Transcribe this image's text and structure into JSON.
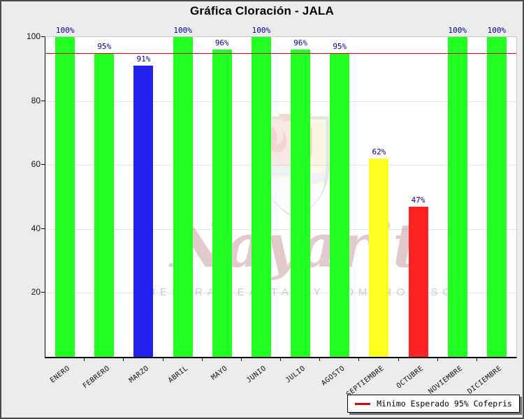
{
  "window": {
    "title": "Gráfica Cloración - JALA"
  },
  "chart_data": {
    "type": "bar",
    "title": "Gráfica Cloración - JALA",
    "categories": [
      "ENERO",
      "FEBRERO",
      "MARZO",
      "ABRIL",
      "MAYO",
      "JUNIO",
      "JULIO",
      "AGOSTO",
      "SEPTIEMBRE",
      "OCTUBRE",
      "NOVIEMBRE",
      "DICIEMBRE"
    ],
    "values": [
      100,
      95,
      91,
      100,
      96,
      100,
      96,
      95,
      62,
      47,
      100,
      100
    ],
    "value_labels": [
      "100%",
      "95%",
      "91%",
      "100%",
      "96%",
      "100%",
      "96%",
      "95%",
      "62%",
      "47%",
      "100%",
      "100%"
    ],
    "bar_colors": [
      "#22ff22",
      "#22ff22",
      "#2222ee",
      "#22ff22",
      "#22ff22",
      "#22ff22",
      "#22ff22",
      "#22ff22",
      "#ffff22",
      "#ff2222",
      "#22ff22",
      "#22ff22"
    ],
    "value_label_color": "#000099",
    "xlabel": "",
    "ylabel": "",
    "ylim": [
      0,
      100
    ],
    "yticks": [
      20,
      40,
      60,
      80,
      100
    ],
    "grid": true,
    "threshold": {
      "value": 95,
      "color": "#dd0000",
      "label": "Minimo Esperado 95% Cofepris"
    },
    "legend_position": "bottom-right"
  },
  "legend": {
    "items": [
      {
        "swatch_color": "#dd0000",
        "label": "Minimo Esperado 95% Cofepris"
      }
    ]
  },
  "watermark": {
    "script_text": "Nayarit",
    "motto": "NUESTRA LEALTAD Y COMPROMISO"
  }
}
